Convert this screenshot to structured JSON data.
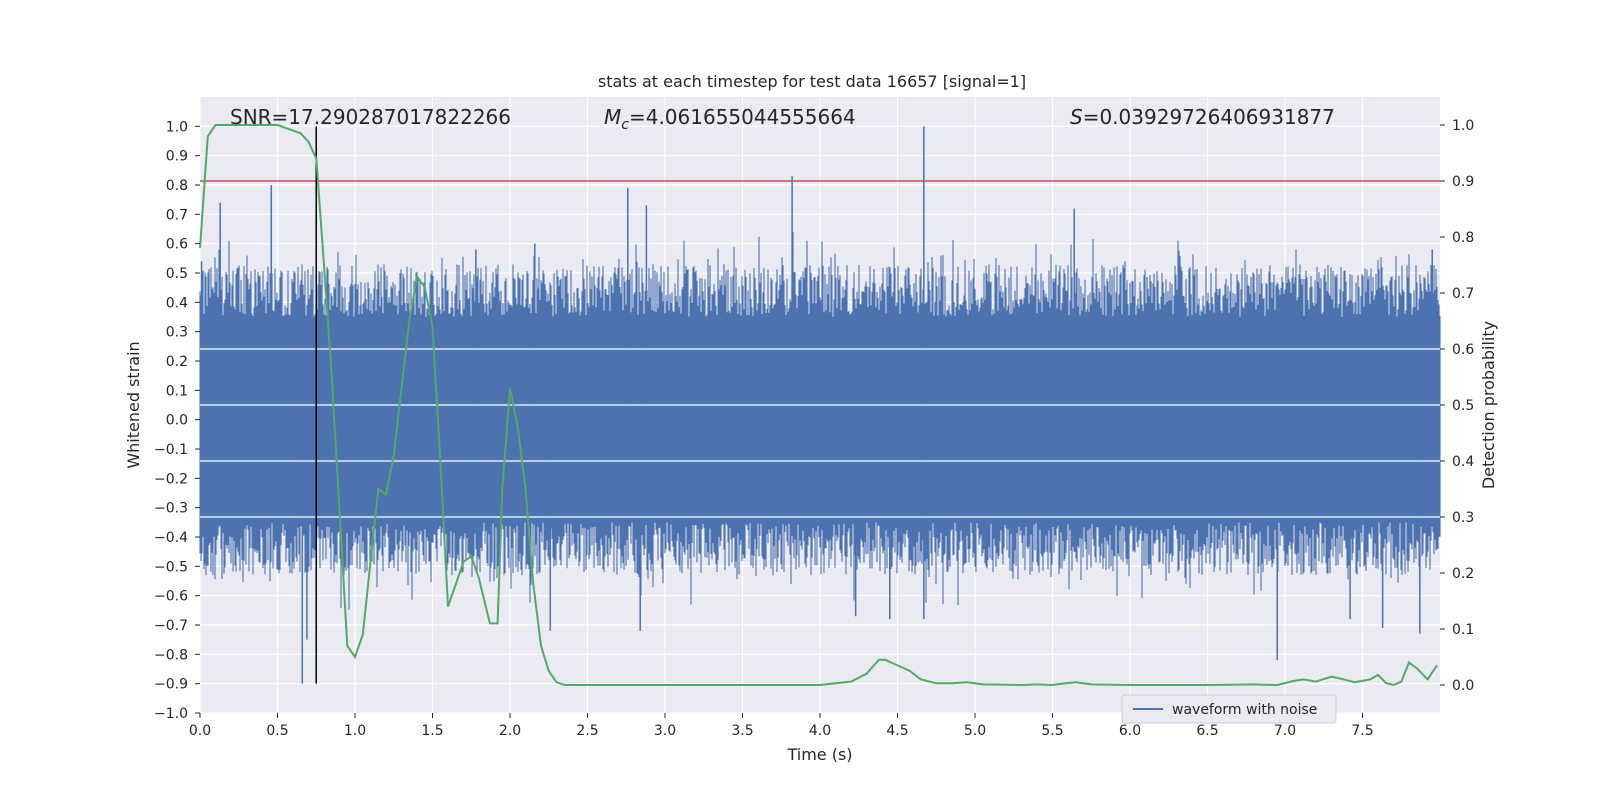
{
  "chart_data": {
    "type": "line",
    "title": "stats at each timestep for test data 16657 [signal=1]",
    "xlabel": "Time (s)",
    "ylabel_left": "Whitened strain",
    "ylabel_right": "Detection probability",
    "xlim": [
      0,
      8
    ],
    "ylim_left": [
      -1.0,
      1.1
    ],
    "ylim_right": [
      -0.05,
      1.05
    ],
    "grid": true,
    "x_ticks": [
      "0.0",
      "0.5",
      "1.0",
      "1.5",
      "2.0",
      "2.5",
      "3.0",
      "3.5",
      "4.0",
      "4.5",
      "5.0",
      "5.5",
      "6.0",
      "6.5",
      "7.0",
      "7.5"
    ],
    "y_ticks_left": [
      "1.0",
      "0.9",
      "0.8",
      "0.7",
      "0.6",
      "0.5",
      "0.4",
      "0.3",
      "0.2",
      "0.1",
      "0.0",
      "-0.1",
      "-0.2",
      "-0.3",
      "-0.4",
      "-0.5",
      "-0.6",
      "-0.7",
      "-0.8",
      "-0.9",
      "-1.0"
    ],
    "y_ticks_right": [
      "1.0",
      "0.9",
      "0.8",
      "0.7",
      "0.6",
      "0.5",
      "0.4",
      "0.3",
      "0.2",
      "0.1",
      "0.0"
    ],
    "annotations": {
      "snr": "SNR=17.290287017822266",
      "mc_symbol": "M",
      "mc_sub": "c",
      "mc_value": "=4.061655044555664",
      "s_symbol": "S",
      "s_value": "=0.03929726406931877"
    },
    "threshold_right": 0.9,
    "marker_time": 0.75,
    "marker_range_left": [
      -0.9,
      1.0
    ],
    "waveform": {
      "name": "waveform with noise",
      "color": "#4c72b0",
      "core_range": [
        -0.35,
        0.35
      ],
      "spikes": [
        {
          "t": 0.01,
          "y": 0.54
        },
        {
          "t": 0.13,
          "y": 0.74
        },
        {
          "t": 0.46,
          "y": 0.8
        },
        {
          "t": 0.66,
          "y": -0.9
        },
        {
          "t": 0.69,
          "y": -0.75
        },
        {
          "t": 0.75,
          "y": -0.58
        },
        {
          "t": 1.78,
          "y": 0.58
        },
        {
          "t": 2.16,
          "y": 0.6
        },
        {
          "t": 2.26,
          "y": -0.72
        },
        {
          "t": 2.76,
          "y": 0.79
        },
        {
          "t": 2.84,
          "y": -0.72
        },
        {
          "t": 2.88,
          "y": 0.73
        },
        {
          "t": 3.82,
          "y": 0.83
        },
        {
          "t": 4.23,
          "y": -0.67
        },
        {
          "t": 4.45,
          "y": -0.68
        },
        {
          "t": 4.67,
          "y": 1.0
        },
        {
          "t": 4.67,
          "y": -0.68
        },
        {
          "t": 5.64,
          "y": 0.72
        },
        {
          "t": 6.95,
          "y": -0.82
        },
        {
          "t": 7.42,
          "y": -0.68
        },
        {
          "t": 7.63,
          "y": -0.71
        },
        {
          "t": 7.87,
          "y": -0.73
        },
        {
          "t": 7.95,
          "y": 0.58
        }
      ]
    },
    "probability": {
      "color": "#55a868",
      "t": [
        0.0,
        0.05,
        0.1,
        0.2,
        0.3,
        0.4,
        0.5,
        0.6,
        0.65,
        0.7,
        0.75,
        0.8,
        0.85,
        0.95,
        1.0,
        1.05,
        1.1,
        1.15,
        1.2,
        1.25,
        1.3,
        1.35,
        1.4,
        1.45,
        1.5,
        1.55,
        1.6,
        1.65,
        1.7,
        1.75,
        1.8,
        1.87,
        1.92,
        1.95,
        2.0,
        2.05,
        2.1,
        2.15,
        2.2,
        2.25,
        2.3,
        2.35,
        2.4,
        2.5,
        2.6,
        2.7,
        2.8,
        3.0,
        3.2,
        3.4,
        3.6,
        3.8,
        4.0,
        4.1,
        4.2,
        4.3,
        4.38,
        4.42,
        4.5,
        4.58,
        4.65,
        4.75,
        4.85,
        4.95,
        5.05,
        5.3,
        5.4,
        5.5,
        5.55,
        5.65,
        5.75,
        6.0,
        6.5,
        6.8,
        6.95,
        7.05,
        7.12,
        7.2,
        7.3,
        7.35,
        7.45,
        7.55,
        7.6,
        7.65,
        7.7,
        7.75,
        7.8,
        7.85,
        7.92,
        7.98
      ],
      "p": [
        0.78,
        0.98,
        1.0,
        1.0,
        1.0,
        1.0,
        1.0,
        0.99,
        0.985,
        0.97,
        0.94,
        0.75,
        0.55,
        0.07,
        0.05,
        0.09,
        0.22,
        0.35,
        0.34,
        0.41,
        0.53,
        0.65,
        0.73,
        0.71,
        0.64,
        0.4,
        0.14,
        0.18,
        0.22,
        0.23,
        0.19,
        0.11,
        0.11,
        0.35,
        0.53,
        0.46,
        0.35,
        0.18,
        0.07,
        0.025,
        0.005,
        0.0,
        0.0,
        0.0,
        0.0,
        0.0,
        0.0,
        0.0,
        0.0,
        0.0,
        0.0,
        0.0,
        0.0,
        0.003,
        0.006,
        0.02,
        0.045,
        0.045,
        0.035,
        0.025,
        0.01,
        0.003,
        0.003,
        0.005,
        0.001,
        0.0,
        0.001,
        0.0,
        0.002,
        0.005,
        0.001,
        0.0,
        0.0,
        0.001,
        0.0,
        0.007,
        0.01,
        0.006,
        0.015,
        0.012,
        0.005,
        0.01,
        0.018,
        0.004,
        0.0,
        0.006,
        0.04,
        0.03,
        0.01,
        0.035
      ]
    },
    "legend": [
      "waveform with noise"
    ],
    "legend_position": "bottom-right"
  }
}
